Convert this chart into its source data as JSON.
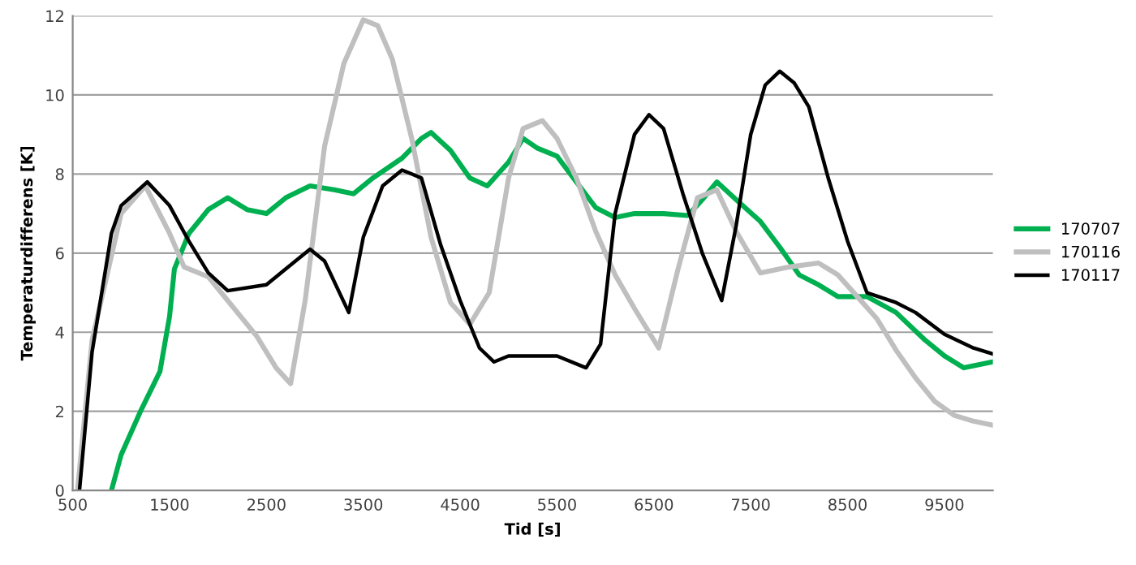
{
  "chart_data": {
    "type": "line",
    "xlabel": "Tid [s]",
    "ylabel": "Temperaturdifferens [K]",
    "xlim": [
      500,
      10000
    ],
    "xticks": [
      500,
      1500,
      2500,
      3500,
      4500,
      5500,
      6500,
      7500,
      8500,
      9500
    ],
    "ylim": [
      0,
      12
    ],
    "yticks": [
      0,
      2,
      4,
      6,
      8,
      10,
      12
    ],
    "grid": "y",
    "legend": "right",
    "marker": "none",
    "line_style": "solid",
    "series": [
      {
        "name": "170707",
        "color": "#00b050",
        "x": [
          900,
          1000,
          1200,
          1400,
          1500,
          1550,
          1700,
          1900,
          2100,
          2300,
          2500,
          2700,
          2950,
          3200,
          3400,
          3600,
          3900,
          4100,
          4200,
          4400,
          4600,
          4780,
          5000,
          5150,
          5300,
          5500,
          5700,
          5900,
          6100,
          6300,
          6600,
          6850,
          7000,
          7150,
          7350,
          7600,
          7800,
          8000,
          8200,
          8400,
          8700,
          9000,
          9300,
          9500,
          9700,
          10000
        ],
        "values": [
          0,
          0.9,
          2.0,
          3.0,
          4.4,
          5.6,
          6.5,
          7.1,
          7.4,
          7.1,
          7.0,
          7.4,
          7.7,
          7.6,
          7.5,
          7.9,
          8.4,
          8.9,
          9.05,
          8.6,
          7.9,
          7.7,
          8.3,
          8.9,
          8.65,
          8.45,
          7.8,
          7.15,
          6.9,
          7.0,
          7.0,
          6.95,
          7.35,
          7.8,
          7.35,
          6.8,
          6.15,
          5.45,
          5.2,
          4.9,
          4.9,
          4.5,
          3.8,
          3.4,
          3.1,
          3.25
        ]
      },
      {
        "name": "170116",
        "color": "#bfbfbf",
        "x": [
          550,
          700,
          1000,
          1250,
          1500,
          1650,
          1900,
          2100,
          2400,
          2600,
          2750,
          2900,
          3100,
          3300,
          3500,
          3650,
          3800,
          4000,
          4200,
          4400,
          4600,
          4800,
          5000,
          5150,
          5350,
          5500,
          5700,
          5900,
          6100,
          6300,
          6550,
          6750,
          6950,
          7150,
          7350,
          7600,
          7900,
          8200,
          8400,
          8600,
          8800,
          9000,
          9200,
          9400,
          9600,
          9800,
          10000
        ],
        "values": [
          0,
          3.8,
          7.0,
          7.7,
          6.5,
          5.65,
          5.4,
          4.8,
          3.9,
          3.1,
          2.7,
          4.8,
          8.7,
          10.8,
          11.9,
          11.75,
          10.9,
          8.9,
          6.4,
          4.75,
          4.2,
          5.0,
          7.9,
          9.15,
          9.35,
          8.9,
          7.9,
          6.55,
          5.45,
          4.6,
          3.6,
          5.6,
          7.4,
          7.6,
          6.55,
          5.5,
          5.65,
          5.75,
          5.45,
          4.9,
          4.35,
          3.55,
          2.85,
          2.25,
          1.9,
          1.75,
          1.65
        ]
      },
      {
        "name": "170117",
        "color": "#000000",
        "x": [
          570,
          700,
          900,
          1000,
          1270,
          1500,
          1700,
          1900,
          2100,
          2500,
          2700,
          2950,
          3100,
          3350,
          3500,
          3700,
          3900,
          4100,
          4300,
          4500,
          4700,
          4850,
          5000,
          5500,
          5800,
          5950,
          6100,
          6300,
          6450,
          6600,
          6800,
          7000,
          7200,
          7350,
          7500,
          7650,
          7800,
          7950,
          8100,
          8300,
          8500,
          8700,
          9000,
          9200,
          9500,
          9800,
          10000
        ],
        "values": [
          0,
          3.5,
          6.5,
          7.2,
          7.8,
          7.2,
          6.3,
          5.5,
          5.05,
          5.2,
          5.6,
          6.1,
          5.8,
          4.5,
          6.4,
          7.7,
          8.1,
          7.9,
          6.2,
          4.8,
          3.6,
          3.25,
          3.4,
          3.4,
          3.1,
          3.7,
          7.0,
          9.0,
          9.5,
          9.15,
          7.5,
          6.0,
          4.8,
          6.7,
          9.0,
          10.25,
          10.6,
          10.3,
          9.7,
          7.9,
          6.3,
          5.0,
          4.75,
          4.5,
          3.95,
          3.6,
          3.45
        ]
      }
    ]
  }
}
